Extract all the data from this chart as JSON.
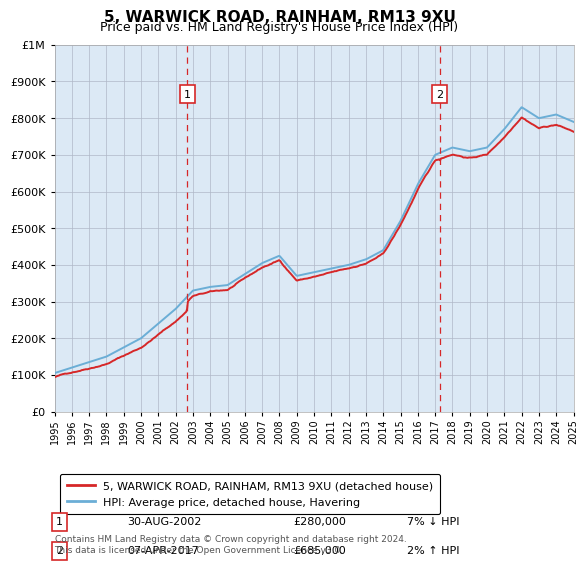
{
  "title": "5, WARWICK ROAD, RAINHAM, RM13 9XU",
  "subtitle": "Price paid vs. HM Land Registry's House Price Index (HPI)",
  "background_color": "#dce9f5",
  "plot_bg_color": "#dce9f5",
  "ylim": [
    0,
    1000000
  ],
  "year_start": 1995,
  "year_end": 2025,
  "red_line_label": "5, WARWICK ROAD, RAINHAM, RM13 9XU (detached house)",
  "blue_line_label": "HPI: Average price, detached house, Havering",
  "marker1_year": 2002.67,
  "marker1_value": 280000,
  "marker1_label": "1",
  "marker1_date": "30-AUG-2002",
  "marker1_price": "£280,000",
  "marker1_hpi": "7% ↓ HPI",
  "marker2_year": 2017.27,
  "marker2_value": 685000,
  "marker2_label": "2",
  "marker2_date": "07-APR-2017",
  "marker2_price": "£685,000",
  "marker2_hpi": "2% ↑ HPI",
  "footer": "Contains HM Land Registry data © Crown copyright and database right 2024.\nThis data is licensed under the Open Government Licence v3.0.",
  "hpi_color": "#6baed6",
  "price_color": "#d62728",
  "vline_color": "#d62728",
  "grid_color": "#b0b8c8"
}
